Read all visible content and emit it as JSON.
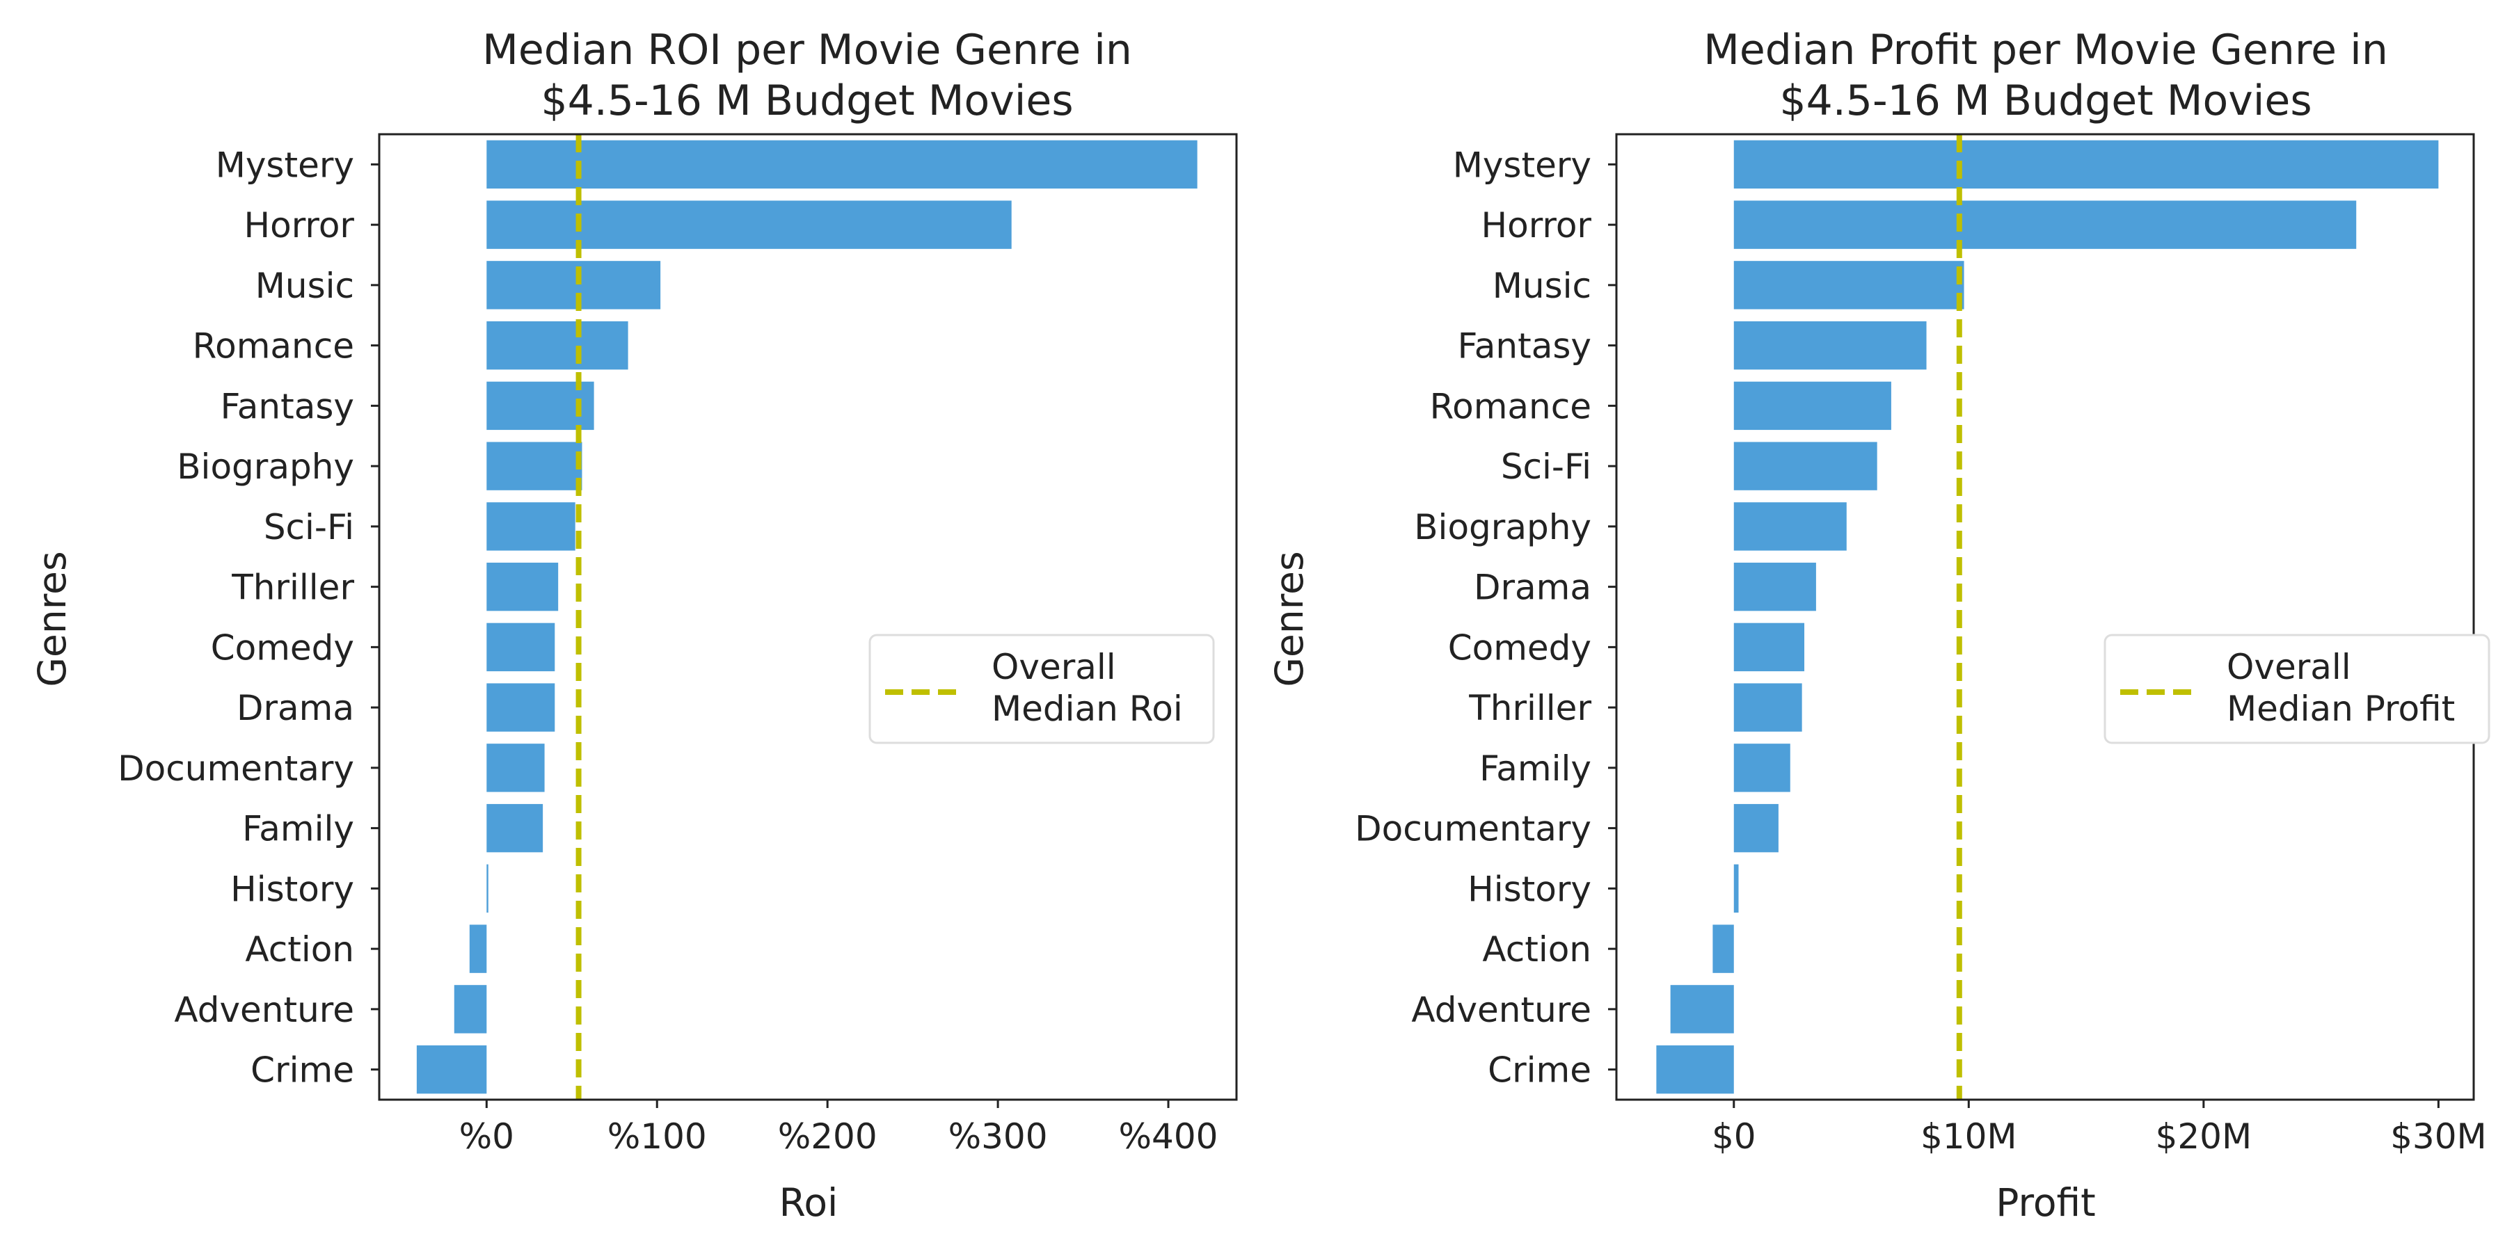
{
  "chart_data": [
    {
      "type": "bar",
      "orientation": "horizontal",
      "title_line1": "Median ROI per Movie Genre in",
      "title_line2": "$4.5-16 M Budget Movies",
      "xlabel": "Roi",
      "ylabel": "Genres",
      "categories": [
        "Mystery",
        "Horror",
        "Music",
        "Romance",
        "Fantasy",
        "Biography",
        "Sci-Fi",
        "Thriller",
        "Comedy",
        "Drama",
        "Documentary",
        "Family",
        "History",
        "Action",
        "Adventure",
        "Crime"
      ],
      "values": [
        417,
        308,
        102,
        83,
        63,
        56,
        52,
        42,
        40,
        40,
        34,
        33,
        1,
        -10,
        -19,
        -41
      ],
      "xlim": [
        -63,
        440
      ],
      "xticks": [
        0,
        100,
        200,
        300,
        400
      ],
      "xtick_labels": [
        "%0",
        "%100",
        "%200",
        "%300",
        "%400"
      ],
      "reference_line": 54,
      "legend_line1": "Overall",
      "legend_line2": "Median Roi",
      "legend_position": "right",
      "bar_color": "#4E9FD9",
      "line_color": "#BFBF00"
    },
    {
      "type": "bar",
      "orientation": "horizontal",
      "title_line1": "Median Profit per Movie Genre in",
      "title_line2": "$4.5-16 M Budget Movies",
      "xlabel": "Profit",
      "ylabel": "Genres",
      "categories": [
        "Mystery",
        "Horror",
        "Music",
        "Fantasy",
        "Romance",
        "Sci-Fi",
        "Biography",
        "Drama",
        "Comedy",
        "Thriller",
        "Family",
        "Documentary",
        "History",
        "Action",
        "Adventure",
        "Crime"
      ],
      "values": [
        30.0,
        26.5,
        9.8,
        8.2,
        6.7,
        6.1,
        4.8,
        3.5,
        3.0,
        2.9,
        2.4,
        1.9,
        0.2,
        -0.9,
        -2.7,
        -3.3
      ],
      "xlim": [
        -5.0,
        31.5
      ],
      "xticks": [
        0,
        10,
        20,
        30
      ],
      "xtick_labels": [
        "$0",
        "$10M",
        "$20M",
        "$30M"
      ],
      "reference_line": 9.6,
      "legend_line1": "Overall",
      "legend_line2": "Median Profit",
      "legend_position": "right",
      "bar_color": "#4E9FD9",
      "line_color": "#BFBF00"
    }
  ]
}
